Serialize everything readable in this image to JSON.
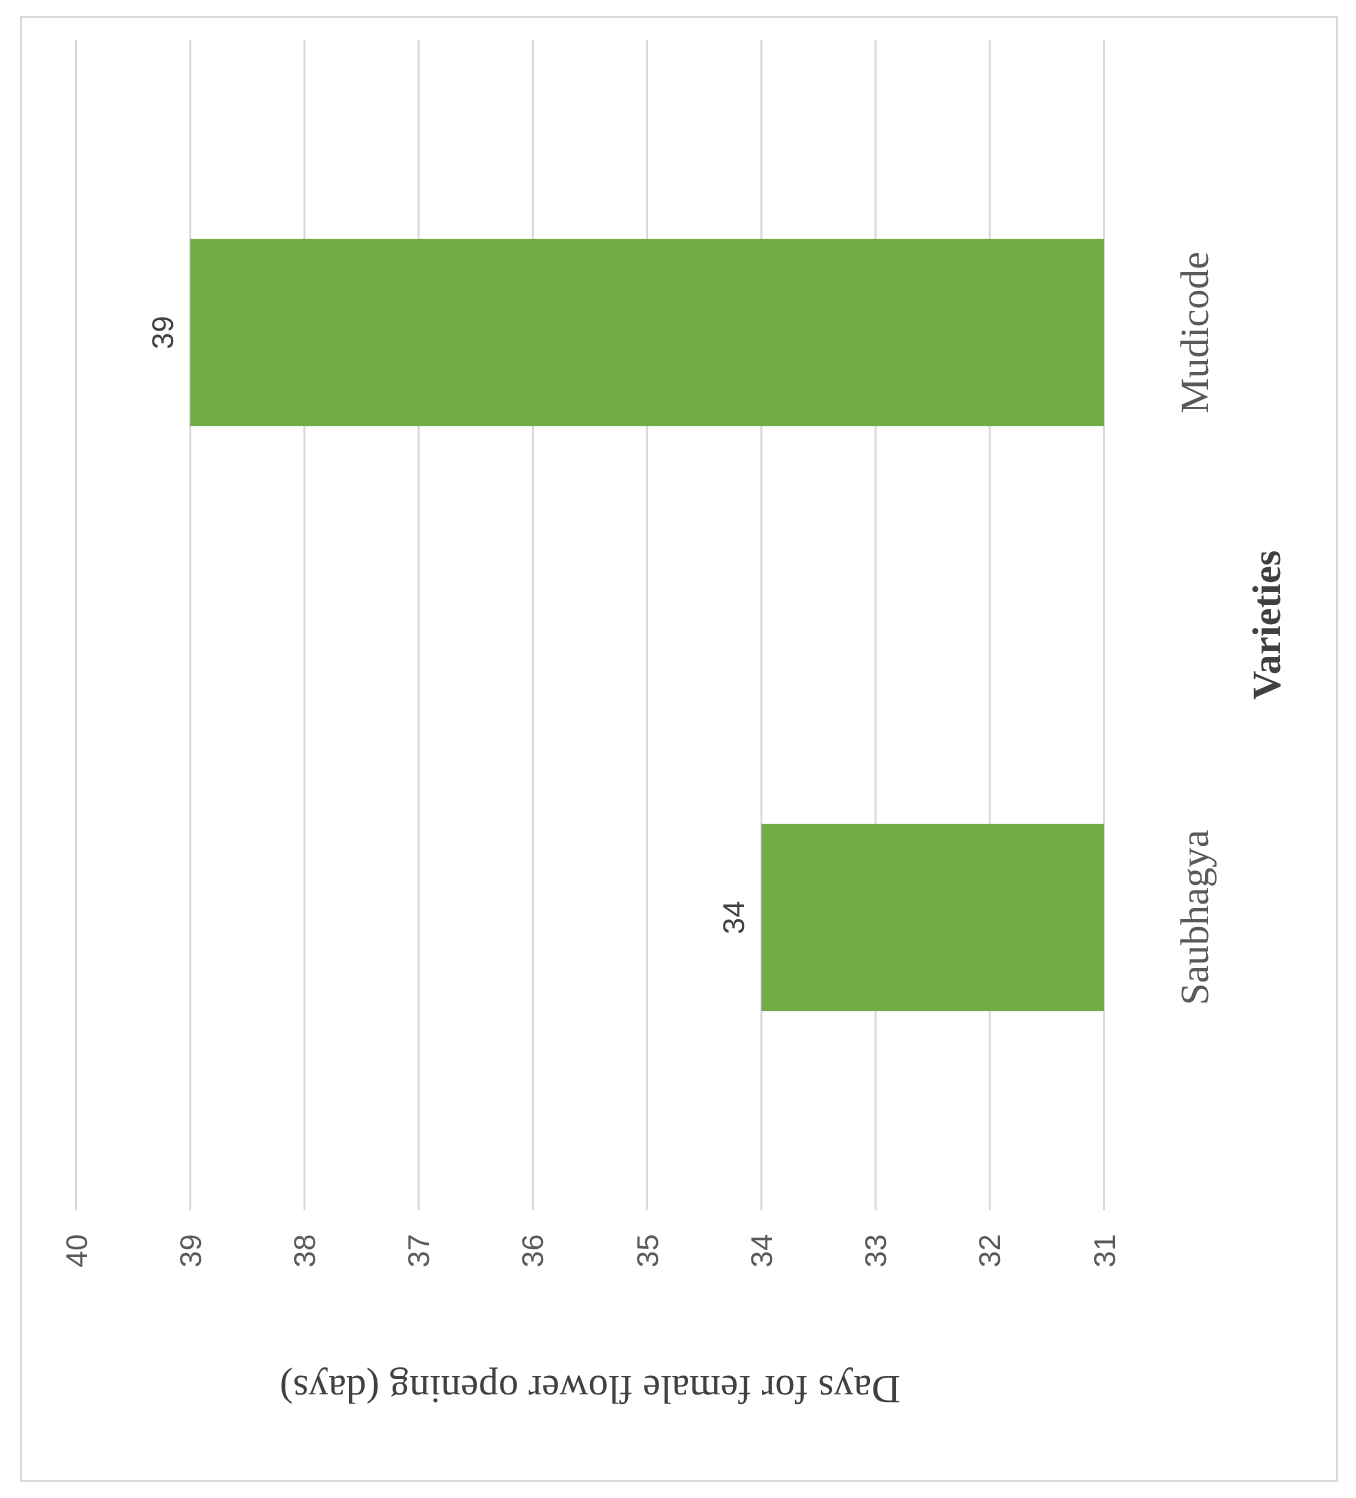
{
  "chart_data": {
    "type": "bar",
    "orientation": "horizontal",
    "xlabel": "Days for female flower opening (days)",
    "ylabel": "Varieties",
    "categories": [
      "Mudicode",
      "Saubhagya"
    ],
    "values": [
      39,
      34
    ],
    "color": "#70ad47",
    "xlim": [
      40,
      31
    ],
    "xticks": [
      40,
      39,
      38,
      37,
      36,
      35,
      34,
      33,
      32,
      31
    ],
    "grid": "x",
    "data_labels": true
  }
}
